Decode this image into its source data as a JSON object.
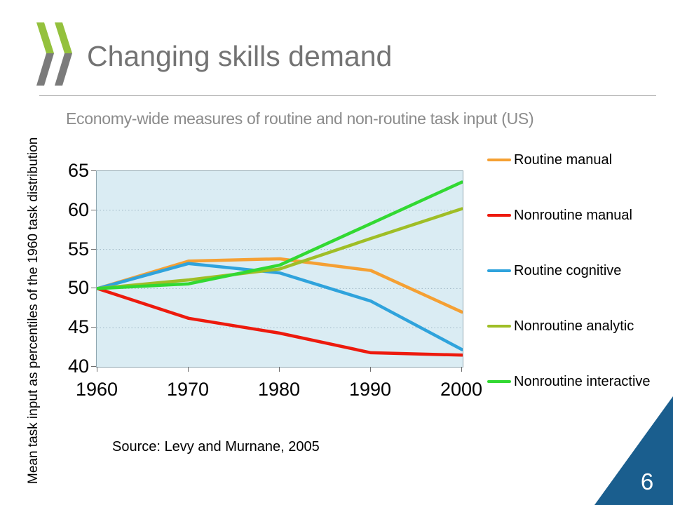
{
  "slide": {
    "title": "Changing skills demand",
    "subtitle": "Economy-wide measures of routine and non-routine task input (US)",
    "source": "Source: Levy and Murnane, 2005",
    "page_number": "6"
  },
  "branding": {
    "logo_green": "#94c13d",
    "logo_gray": "#7b7b7b",
    "corner_triangle_blue": "#1a5e8e",
    "title_gray": "#737373"
  },
  "chart_data": {
    "type": "line",
    "title": "Economy-wide measures of routine and non-routine task input (US)",
    "xlabel": "",
    "ylabel": "Mean task input as percentiles of the 1960 task distribution",
    "x": [
      1960,
      1970,
      1980,
      1990,
      2000
    ],
    "x_tick_labels": [
      "1960",
      "1970",
      "1980",
      "1990",
      "2000"
    ],
    "y_ticks": [
      40,
      45,
      50,
      55,
      60,
      65
    ],
    "ylim": [
      40,
      65
    ],
    "grid": "horizontal dotted gridlines",
    "plot_background": "#daecf3",
    "gridline_color": "#9eb6c4",
    "legend_position": "right",
    "series": [
      {
        "name": "Routine manual",
        "color": "#f5a033",
        "values": [
          50,
          53.5,
          53.8,
          52.3,
          47
        ]
      },
      {
        "name": "Nonroutine manual",
        "color": "#ed1a0d",
        "values": [
          50,
          46.2,
          44.3,
          41.8,
          41.5
        ]
      },
      {
        "name": "Routine cognitive",
        "color": "#2fa3dc",
        "values": [
          50,
          53.2,
          52.0,
          48.4,
          42.2
        ]
      },
      {
        "name": "Nonroutine analytic",
        "color": "#9fbe26",
        "values": [
          50,
          51.1,
          52.5,
          56.4,
          60.2
        ]
      },
      {
        "name": "Nonroutine interactive",
        "color": "#32d932",
        "values": [
          50,
          50.6,
          53.0,
          58.3,
          63.6
        ]
      }
    ]
  }
}
